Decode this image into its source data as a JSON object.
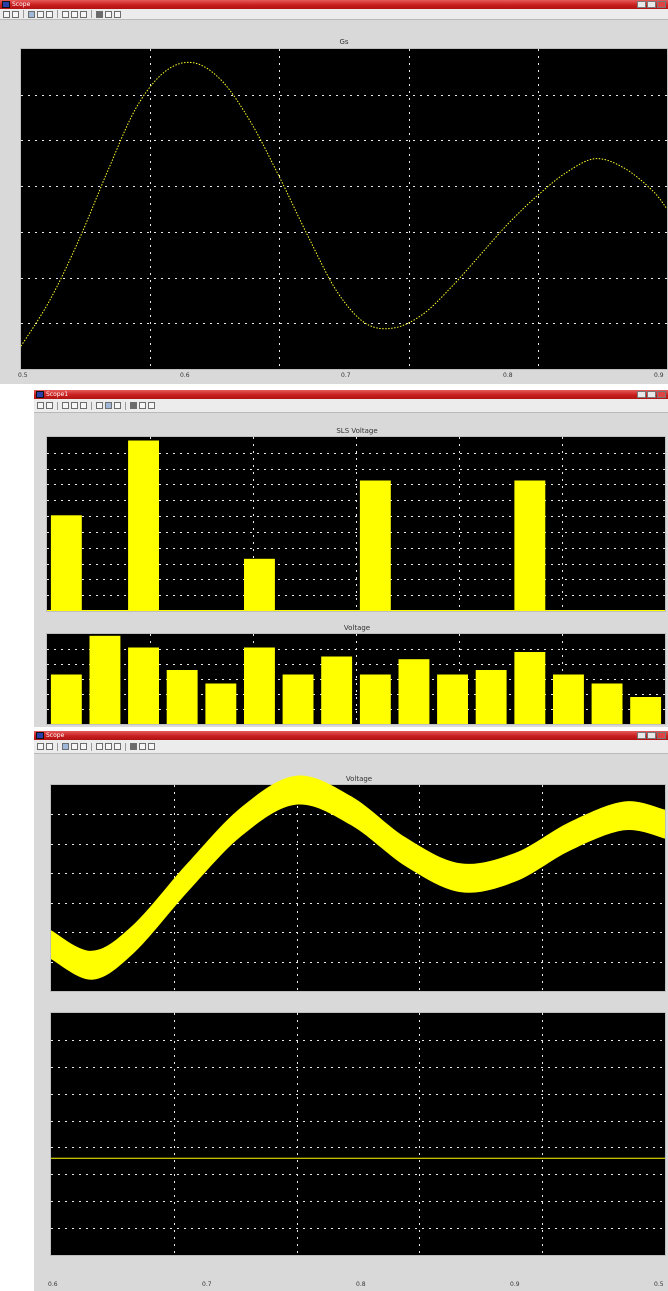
{
  "window1": {
    "title": "Scope",
    "caption": "",
    "controls": [
      "",
      "",
      ""
    ]
  },
  "window2": {
    "title": "Scope1",
    "caption": "",
    "controls": [
      "",
      "",
      ""
    ]
  },
  "window3": {
    "title": "Scope",
    "caption": "",
    "controls": [
      "",
      "",
      ""
    ]
  },
  "toolbar": {
    "icons": [
      "print-icon",
      "parameters-icon",
      "zoom-icon",
      "zoom-x-icon",
      "zoom-y-icon",
      "autoscale-icon",
      "save-axes-icon",
      "restore-icon",
      "float-icon",
      "lock-icon",
      "signal-select-icon"
    ]
  },
  "scope1": {
    "panel_title": "Gs",
    "ytick_labels": [
      "",
      "",
      "",
      "",
      "",
      "",
      "",
      ""
    ],
    "xtick_labels": [
      "0.5",
      "0.6",
      "0.7",
      "0.8",
      "0.9"
    ]
  },
  "scope2": {
    "top_title": "SLS Voltage",
    "bottom_title": "Voltage",
    "ytick_labels": [
      "",
      "",
      "",
      "",
      "",
      "",
      "",
      "",
      "",
      "",
      ""
    ]
  },
  "scope3": {
    "top_title": "Voltage",
    "bottom_title": "",
    "ytick_labels": [
      "",
      "",
      "",
      "",
      "",
      "",
      "",
      ""
    ],
    "xtick_labels": [
      "0.6",
      "0.7",
      "0.8",
      "0.9",
      "0.5"
    ]
  },
  "colors": {
    "trace": "#ffff00",
    "panel_bg": "#000000",
    "title_bar": "#c81e1e"
  },
  "chart_data": [
    {
      "type": "line",
      "title": "Gs",
      "xlabel": "",
      "ylabel": "",
      "xlim": [
        0.5,
        0.95
      ],
      "ylim": [
        -0.4,
        3.1
      ],
      "x": [
        0.5,
        0.52,
        0.54,
        0.56,
        0.58,
        0.6,
        0.62,
        0.64,
        0.66,
        0.68,
        0.7,
        0.72,
        0.74,
        0.76,
        0.78,
        0.8,
        0.82,
        0.84,
        0.86,
        0.88,
        0.9,
        0.92,
        0.94,
        0.95
      ],
      "y": [
        -0.15,
        0.35,
        1.0,
        1.75,
        2.45,
        2.85,
        2.95,
        2.75,
        2.3,
        1.7,
        1.05,
        0.45,
        0.1,
        0.05,
        0.2,
        0.5,
        0.85,
        1.2,
        1.5,
        1.75,
        1.9,
        1.8,
        1.55,
        1.35
      ]
    },
    {
      "type": "bar",
      "title": "SLS Voltage",
      "xlabel": "",
      "ylabel": "",
      "series": [
        {
          "name": "",
          "values": [
            0.55,
            0.0,
            0.98,
            0.0,
            0.0,
            0.3,
            0.0,
            0.0,
            0.75,
            0.0,
            0.0,
            0.0,
            0.75,
            0.0,
            0.0,
            0.0
          ]
        }
      ]
    },
    {
      "type": "bar",
      "title": "Voltage",
      "xlabel": "",
      "ylabel": "",
      "series": [
        {
          "name": "",
          "values": [
            0.55,
            0.98,
            0.85,
            0.6,
            0.45,
            0.85,
            0.55,
            0.75,
            0.55,
            0.72,
            0.55,
            0.6,
            0.8,
            0.55,
            0.45,
            0.3
          ]
        }
      ]
    },
    {
      "type": "area",
      "title": "Voltage",
      "xlabel": "",
      "ylabel": "",
      "xlim": [
        0.5,
        0.95
      ],
      "ylim": [
        -1.0,
        1.0
      ],
      "x": [
        0.5,
        0.53,
        0.56,
        0.6,
        0.64,
        0.68,
        0.72,
        0.76,
        0.8,
        0.84,
        0.88,
        0.92,
        0.95
      ],
      "y": [
        -0.55,
        -0.75,
        -0.5,
        0.1,
        0.65,
        0.95,
        0.75,
        0.35,
        0.1,
        0.2,
        0.5,
        0.7,
        0.62
      ]
    },
    {
      "type": "line",
      "title": "",
      "xlabel": "",
      "ylabel": "",
      "xlim": [
        0.5,
        0.95
      ],
      "ylim": [
        -1.0,
        1.0
      ],
      "x": [
        0.5,
        0.95
      ],
      "y": [
        -0.2,
        -0.2
      ]
    }
  ]
}
